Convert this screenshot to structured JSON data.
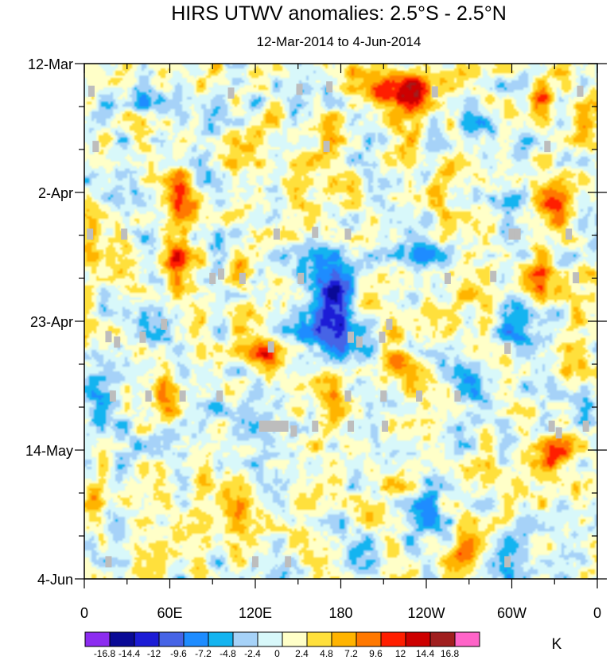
{
  "chart_data": {
    "type": "heatmap",
    "title": "HIRS UTWV anomalies: 2.5°S - 2.5°N",
    "subtitle": "12-Mar-2014 to 4-Jun-2014",
    "x_axis": {
      "ticks": [
        {
          "lon": 0,
          "label": "0"
        },
        {
          "lon": 60,
          "label": "60E"
        },
        {
          "lon": 120,
          "label": "120E"
        },
        {
          "lon": 180,
          "label": "180"
        },
        {
          "lon": 240,
          "label": "120W"
        },
        {
          "lon": 300,
          "label": "60W"
        },
        {
          "lon": 360,
          "label": "0"
        }
      ],
      "minor_step": 30,
      "range": [
        0,
        360
      ]
    },
    "y_axis": {
      "ticks": [
        {
          "day": 0,
          "label": "12-Mar"
        },
        {
          "day": 21,
          "label": "2-Apr"
        },
        {
          "day": 42,
          "label": "23-Apr"
        },
        {
          "day": 63,
          "label": "14-May"
        },
        {
          "day": 84,
          "label": "4-Jun"
        }
      ],
      "minor_step": 7,
      "range": [
        0,
        84
      ],
      "reversed": true
    },
    "colorbar": {
      "unit": "K",
      "levels": [
        "-16.8",
        "-14.4",
        "-12",
        "-9.6",
        "-7.2",
        "-4.8",
        "-2.4",
        "0",
        "2.4",
        "4.8",
        "7.2",
        "9.6",
        "12",
        "14.4",
        "16.8"
      ],
      "colors": [
        "#8c2cf0",
        "#0a0a96",
        "#1c1cd6",
        "#4664e6",
        "#1e8cff",
        "#14b4f0",
        "#a6d2f8",
        "#d8f8fa",
        "#ffffc8",
        "#ffe03c",
        "#ffb400",
        "#ff7800",
        "#ff1e00",
        "#cd0000",
        "#a01e1e",
        "#ff64c8"
      ]
    },
    "anomaly_centers": [
      {
        "lon": 68,
        "day": 23,
        "value": 11.5,
        "r_lon": 10,
        "r_day": 5
      },
      {
        "lon": 62,
        "day": 32,
        "value": 10,
        "r_lon": 10,
        "r_day": 4
      },
      {
        "lon": 213,
        "day": 5,
        "value": 12.5,
        "r_lon": 14,
        "r_day": 3
      },
      {
        "lon": 232,
        "day": 4,
        "value": 9,
        "r_lon": 12,
        "r_day": 3
      },
      {
        "lon": 92,
        "day": 0.5,
        "value": 9,
        "r_lon": 6,
        "r_day": 1.6
      },
      {
        "lon": 188,
        "day": 1,
        "value": 7,
        "r_lon": 6,
        "r_day": 1.5
      },
      {
        "lon": 326,
        "day": 23,
        "value": 9,
        "r_lon": 12,
        "r_day": 4
      },
      {
        "lon": 320,
        "day": 35,
        "value": 8,
        "r_lon": 9,
        "r_day": 5
      },
      {
        "lon": 200,
        "day": 38,
        "value": 8.5,
        "r_lon": 11,
        "r_day": 3
      },
      {
        "lon": 125,
        "day": 48,
        "value": 9.5,
        "r_lon": 11,
        "r_day": 3
      },
      {
        "lon": 223,
        "day": 49,
        "value": 9,
        "r_lon": 16,
        "r_day": 2.5
      },
      {
        "lon": 330,
        "day": 64,
        "value": 9,
        "r_lon": 12,
        "r_day": 3
      },
      {
        "lon": 57,
        "day": 55,
        "value": 6.5,
        "r_lon": 7,
        "r_day": 5
      },
      {
        "lon": 320,
        "day": 5,
        "value": 6,
        "r_lon": 8,
        "r_day": 4
      },
      {
        "lon": 350,
        "day": 9,
        "value": 6,
        "r_lon": 8,
        "r_day": 4
      },
      {
        "lon": 170,
        "day": 12,
        "value": 5,
        "r_lon": 12,
        "r_day": 4
      },
      {
        "lon": 232,
        "day": 12,
        "value": 6,
        "r_lon": 12,
        "r_day": 4
      },
      {
        "lon": 248,
        "day": 21,
        "value": 6,
        "r_lon": 12,
        "r_day": 4
      },
      {
        "lon": 110,
        "day": 35,
        "value": 4.5,
        "r_lon": 12,
        "r_day": 4
      },
      {
        "lon": 262,
        "day": 40,
        "value": 5,
        "r_lon": 10,
        "r_day": 4
      },
      {
        "lon": 345,
        "day": 42,
        "value": 7,
        "r_lon": 8,
        "r_day": 4
      },
      {
        "lon": 338,
        "day": 50,
        "value": 5,
        "r_lon": 8,
        "r_day": 4
      },
      {
        "lon": 5,
        "day": 28,
        "value": 5,
        "r_lon": 7,
        "r_day": 4
      },
      {
        "lon": 5,
        "day": 72,
        "value": 6,
        "r_lon": 8,
        "r_day": 4
      },
      {
        "lon": 205,
        "day": 73,
        "value": 6.5,
        "r_lon": 14,
        "r_day": 3
      },
      {
        "lon": 110,
        "day": 72,
        "value": 5,
        "r_lon": 12,
        "r_day": 4
      },
      {
        "lon": 268,
        "day": 79,
        "value": 6,
        "r_lon": 12,
        "r_day": 3
      },
      {
        "lon": 295,
        "day": 68,
        "value": 4.5,
        "r_lon": 10,
        "r_day": 4
      },
      {
        "lon": 170,
        "day": 56,
        "value": 4,
        "r_lon": 12,
        "r_day": 4
      },
      {
        "lon": 35,
        "day": 9,
        "value": 5,
        "r_lon": 10,
        "r_day": 3
      },
      {
        "lon": 150,
        "day": 22,
        "value": 4,
        "r_lon": 10,
        "r_day": 5
      },
      {
        "lon": 100,
        "day": 14,
        "value": 4,
        "r_lon": 10,
        "r_day": 4
      },
      {
        "lon": 178,
        "day": 43,
        "value": -10,
        "r_lon": 16,
        "r_day": 6
      },
      {
        "lon": 178,
        "day": 35,
        "value": -9.5,
        "r_lon": 18,
        "r_day": 6
      },
      {
        "lon": 160,
        "day": 4,
        "value": -6,
        "r_lon": 14,
        "r_day": 4
      },
      {
        "lon": 28,
        "day": 18,
        "value": -6,
        "r_lon": 14,
        "r_day": 4
      },
      {
        "lon": 40,
        "day": 7,
        "value": -5,
        "r_lon": 10,
        "r_day": 4
      },
      {
        "lon": 10,
        "day": 54,
        "value": -6.5,
        "r_lon": 12,
        "r_day": 4
      },
      {
        "lon": 270,
        "day": 54,
        "value": -6.5,
        "r_lon": 16,
        "r_day": 5
      },
      {
        "lon": 240,
        "day": 74,
        "value": -6,
        "r_lon": 14,
        "r_day": 4
      },
      {
        "lon": 352,
        "day": 55,
        "value": -5.5,
        "r_lon": 8,
        "r_day": 5
      },
      {
        "lon": 240,
        "day": 30,
        "value": -5,
        "r_lon": 12,
        "r_day": 4
      },
      {
        "lon": 130,
        "day": 62,
        "value": -5,
        "r_lon": 12,
        "r_day": 4
      },
      {
        "lon": 300,
        "day": 43,
        "value": -5,
        "r_lon": 12,
        "r_day": 4
      },
      {
        "lon": 20,
        "day": 74,
        "value": -5.5,
        "r_lon": 10,
        "r_day": 4
      },
      {
        "lon": 90,
        "day": 8,
        "value": -4,
        "r_lon": 10,
        "r_day": 4
      },
      {
        "lon": 280,
        "day": 9,
        "value": -4.5,
        "r_lon": 12,
        "r_day": 4
      },
      {
        "lon": 200,
        "day": 82,
        "value": -4,
        "r_lon": 10,
        "r_day": 3
      },
      {
        "lon": 150,
        "day": 47,
        "value": -4,
        "r_lon": 10,
        "r_day": 4
      },
      {
        "lon": 50,
        "day": 44,
        "value": -4,
        "r_lon": 10,
        "r_day": 4
      },
      {
        "lon": 300,
        "day": 80,
        "value": -4,
        "r_lon": 14,
        "r_day": 4
      }
    ],
    "missing_cells": [
      {
        "lon": 5,
        "day": 4.5
      },
      {
        "lon": 103,
        "day": 4.8
      },
      {
        "lon": 151,
        "day": 4.2
      },
      {
        "lon": 172,
        "day": 3.8
      },
      {
        "lon": 246,
        "day": 4.6
      },
      {
        "lon": 348,
        "day": 4.5
      },
      {
        "lon": 8,
        "day": 13.5
      },
      {
        "lon": 170,
        "day": 13.5
      },
      {
        "lon": 325,
        "day": 13.5
      },
      {
        "lon": 4,
        "day": 27.8
      },
      {
        "lon": 28,
        "day": 27.8
      },
      {
        "lon": 135,
        "day": 27.8
      },
      {
        "lon": 162,
        "day": 27.5
      },
      {
        "lon": 185,
        "day": 27.8
      },
      {
        "lon": 300,
        "day": 27.8
      },
      {
        "lon": 304,
        "day": 27.8
      },
      {
        "lon": 340,
        "day": 27.8
      },
      {
        "lon": 96,
        "day": 34.3
      },
      {
        "lon": 90,
        "day": 35
      },
      {
        "lon": 111,
        "day": 35
      },
      {
        "lon": 152,
        "day": 35
      },
      {
        "lon": 255,
        "day": 35
      },
      {
        "lon": 287,
        "day": 34.7
      },
      {
        "lon": 345,
        "day": 34.9
      },
      {
        "lon": 56,
        "day": 42.5
      },
      {
        "lon": 214,
        "day": 42.5
      },
      {
        "lon": 17,
        "day": 44.5
      },
      {
        "lon": 23,
        "day": 45.4
      },
      {
        "lon": 41,
        "day": 44.6
      },
      {
        "lon": 187,
        "day": 44.6
      },
      {
        "lon": 193,
        "day": 45.4
      },
      {
        "lon": 209,
        "day": 44.6
      },
      {
        "lon": 131,
        "day": 46.2
      },
      {
        "lon": 297,
        "day": 46.4
      },
      {
        "lon": 20,
        "day": 54.2
      },
      {
        "lon": 45,
        "day": 54.2
      },
      {
        "lon": 69,
        "day": 54.2
      },
      {
        "lon": 95,
        "day": 54.2
      },
      {
        "lon": 185,
        "day": 54.2
      },
      {
        "lon": 210,
        "day": 54.2
      },
      {
        "lon": 235,
        "day": 54.2
      },
      {
        "lon": 262,
        "day": 54.2
      },
      {
        "lon": 125,
        "day": 59.1
      },
      {
        "lon": 129,
        "day": 59.1
      },
      {
        "lon": 133,
        "day": 59.1
      },
      {
        "lon": 137,
        "day": 59.1
      },
      {
        "lon": 141,
        "day": 59.1
      },
      {
        "lon": 147,
        "day": 59.9
      },
      {
        "lon": 162,
        "day": 59.1
      },
      {
        "lon": 187,
        "day": 59.1
      },
      {
        "lon": 211,
        "day": 59.1
      },
      {
        "lon": 328,
        "day": 59.1
      },
      {
        "lon": 333,
        "day": 60.2
      },
      {
        "lon": 352,
        "day": 59.1
      },
      {
        "lon": 17,
        "day": 81.2
      },
      {
        "lon": 120,
        "day": 81.2
      },
      {
        "lon": 143,
        "day": 81.2
      },
      {
        "lon": 297,
        "day": 81.2
      }
    ]
  }
}
